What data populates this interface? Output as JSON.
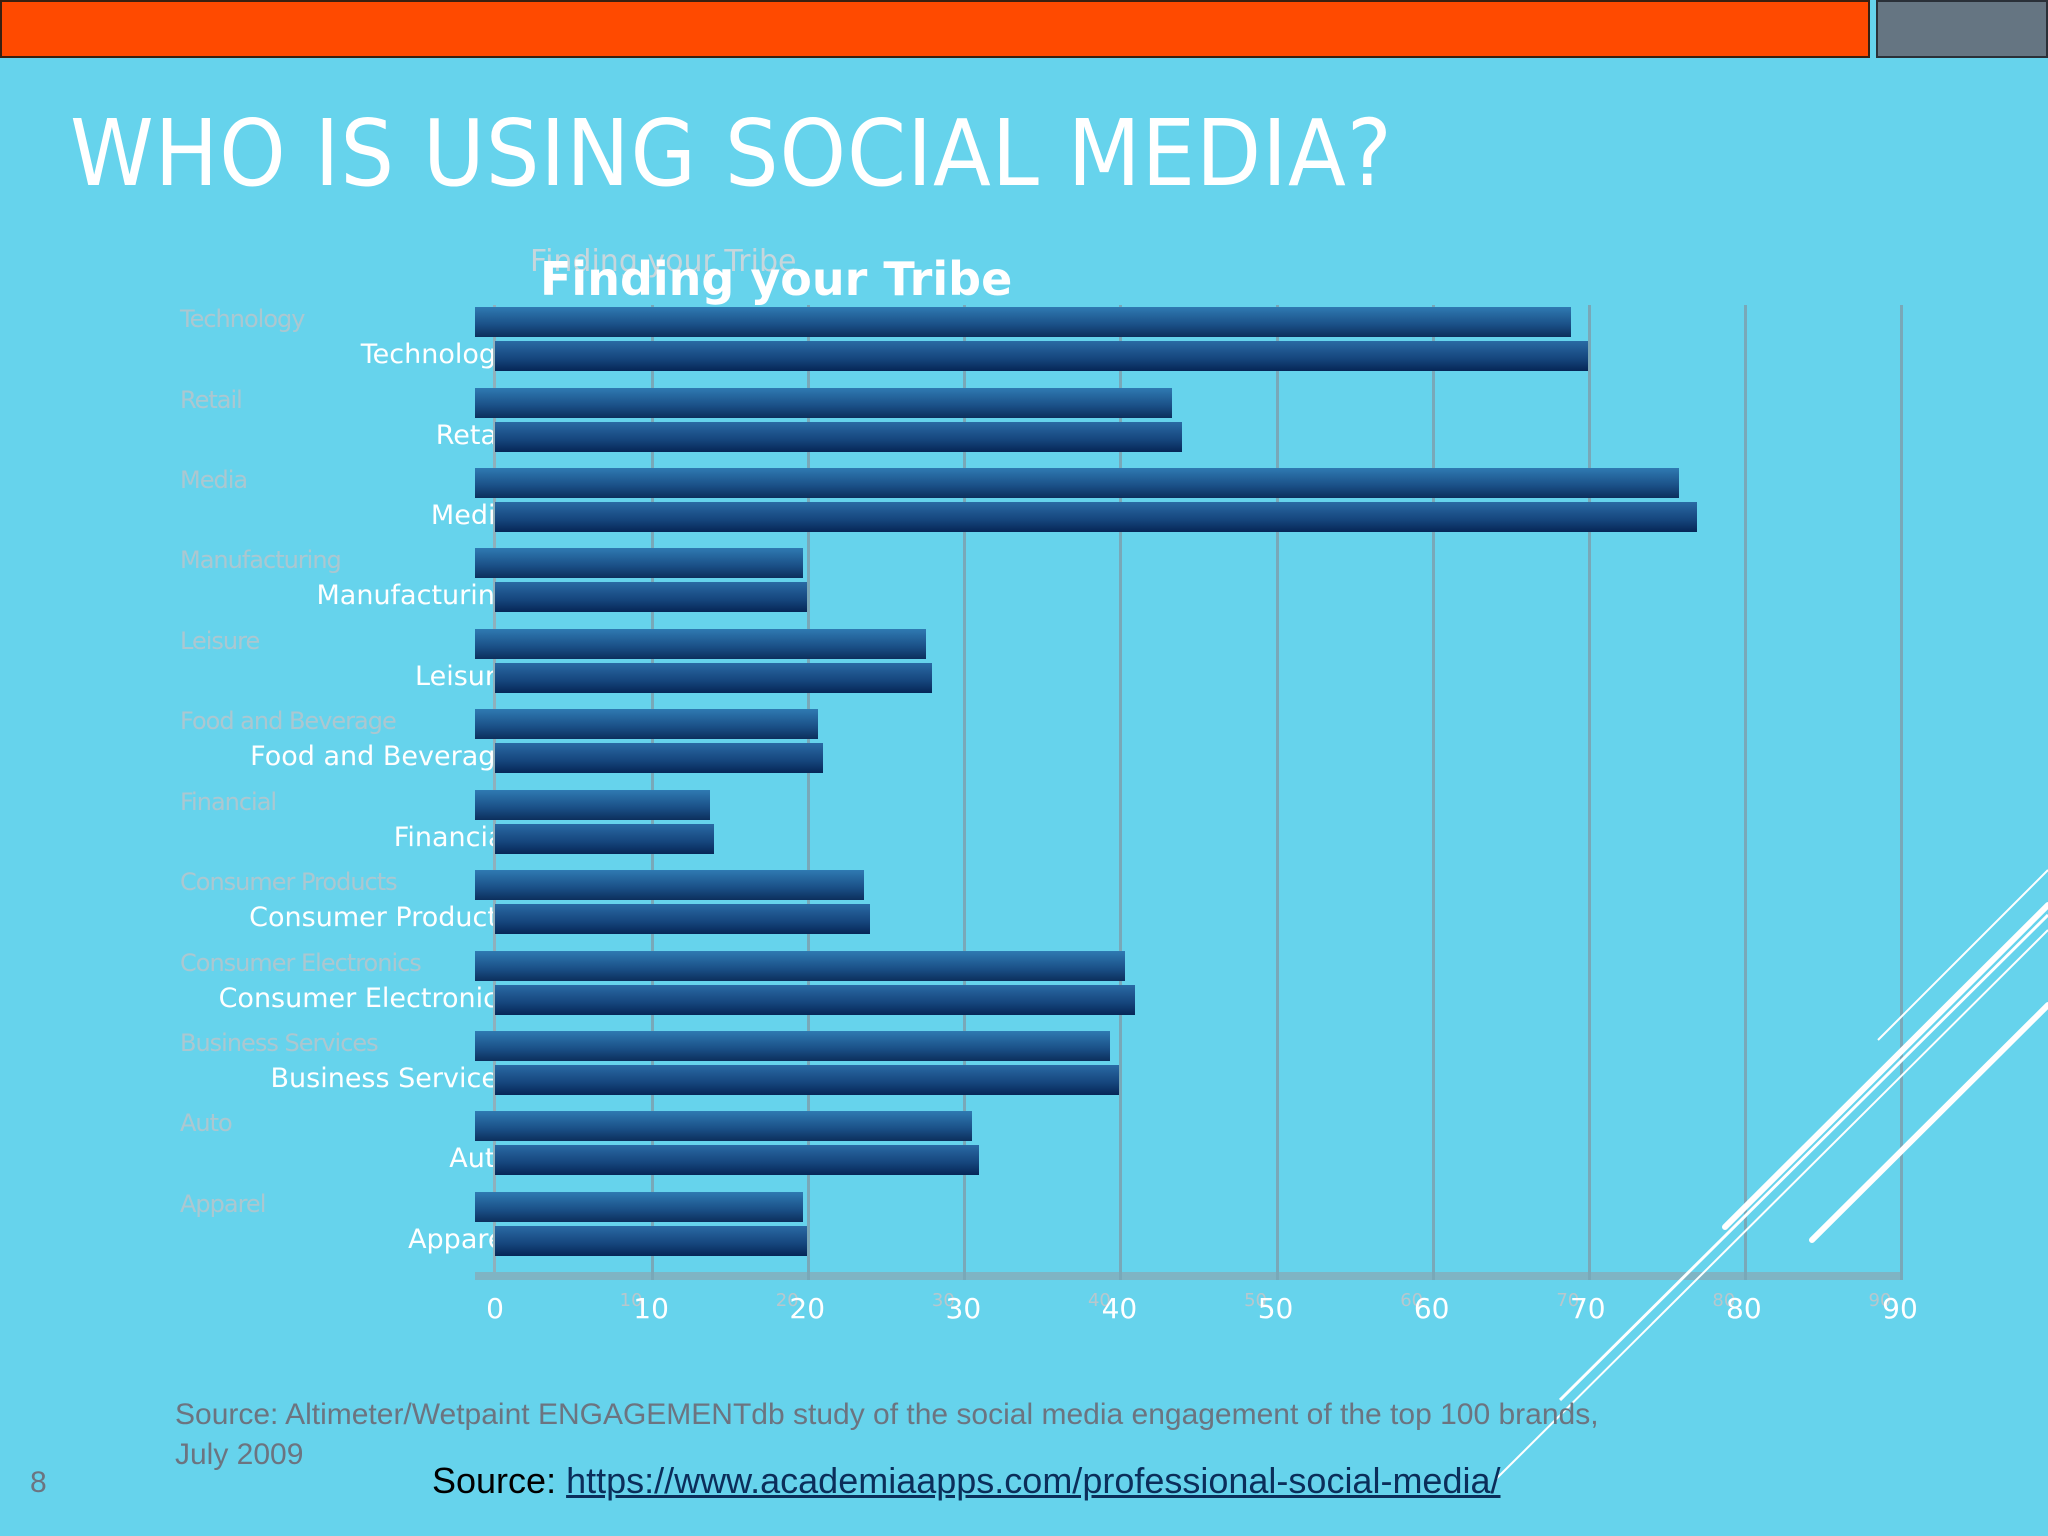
{
  "slide": {
    "title": "WHO IS USING SOCIAL MEDIA?",
    "number": "8",
    "colors": {
      "background": "#66d3ec",
      "top_bar": "#ff4a00",
      "top_box": "#657582",
      "bar": "#15457c"
    }
  },
  "footer": {
    "source_note": "Source: Altimeter/Wetpaint ENGAGEMENTdb study of the social media engagement of the top 100 brands, July 2009",
    "source_prefix": "Source: ",
    "source_url": "https://www.academiaapps.com/professional-social-media/"
  },
  "chart_data": {
    "type": "bar",
    "orientation": "horizontal",
    "title": "Finding your Tribe",
    "categories": [
      "Technology",
      "Retail",
      "Media",
      "Manufacturing",
      "Leisure",
      "Food and Beverage",
      "Financial",
      "Consumer Products",
      "Consumer Electronics",
      "Business Services",
      "Auto",
      "Apparel"
    ],
    "values": [
      70,
      44,
      77,
      20,
      28,
      21,
      14,
      24,
      41,
      40,
      31,
      20
    ],
    "xlabel": "",
    "ylabel": "",
    "xlim": [
      0,
      90
    ],
    "x_ticks": [
      "0",
      "10",
      "20",
      "30",
      "40",
      "50",
      "60",
      "70",
      "80",
      "90"
    ],
    "grid": true,
    "legend": null
  }
}
